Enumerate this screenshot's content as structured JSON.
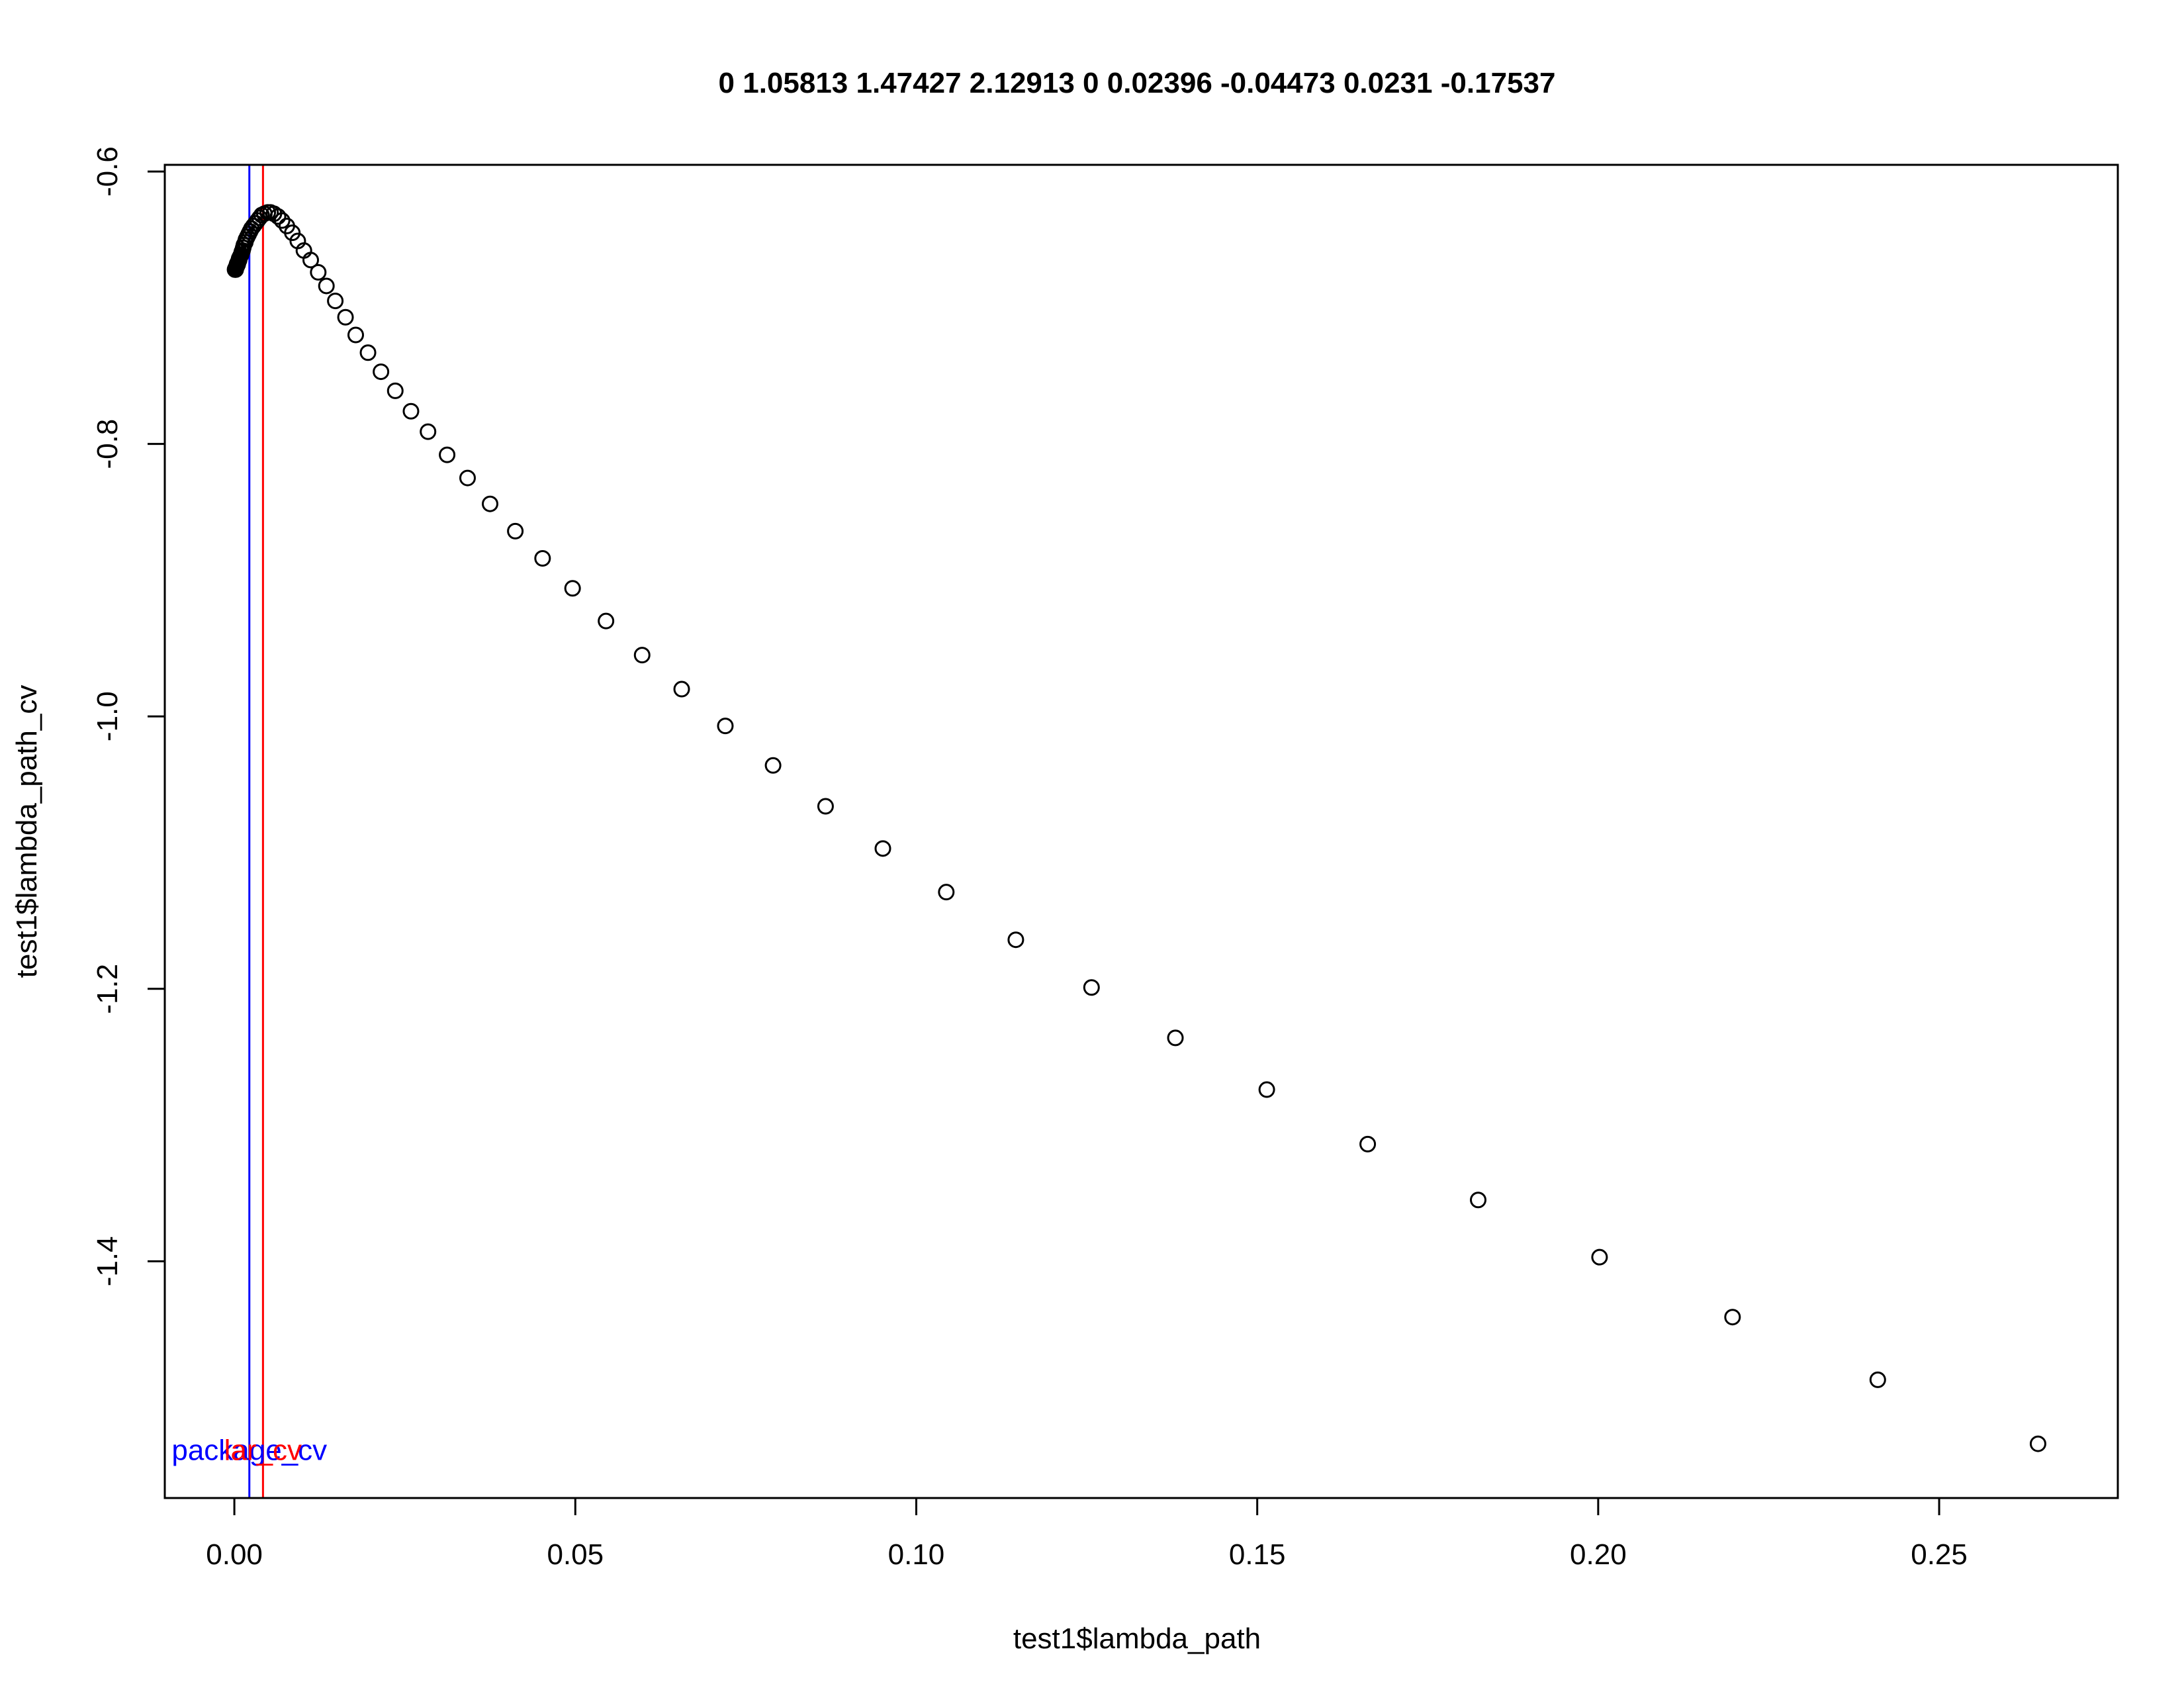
{
  "chart_data": {
    "type": "scatter",
    "title": "0 1.05813 1.47427 2.12913 0 0.02396 -0.04473 0.0231 -0.17537",
    "xlabel": "test1$lambda_path",
    "ylabel": "test1$lambda_path_cv",
    "xlim": [
      -0.0102,
      0.2762
    ],
    "ylim": [
      -1.5738,
      -0.5951
    ],
    "xticks": [
      0.0,
      0.05,
      0.1,
      0.15,
      0.2,
      0.25
    ],
    "xtick_labels": [
      "0.00",
      "0.05",
      "0.10",
      "0.15",
      "0.20",
      "0.25"
    ],
    "yticks": [
      -0.6,
      -0.8,
      -1.0,
      -1.2,
      -1.4
    ],
    "ytick_labels": [
      "-0.6",
      "-0.8",
      "-1.0",
      "-1.2",
      "-1.4"
    ],
    "grid": false,
    "series": [
      {
        "marker": "open-circle",
        "color": "#000000",
        "x": [
          0.2645,
          0.241,
          0.2197,
          0.2002,
          0.1824,
          0.1662,
          0.1514,
          0.138,
          0.1257,
          0.1146,
          0.1044,
          0.0951,
          0.0867,
          0.079,
          0.072,
          0.0656,
          0.0598,
          0.0545,
          0.0496,
          0.0452,
          0.0412,
          0.0375,
          0.0342,
          0.0312,
          0.0284,
          0.0259,
          0.0236,
          0.0215,
          0.0196,
          0.0178,
          0.0163,
          0.0148,
          0.0135,
          0.0123,
          0.0112,
          0.0102,
          0.0093,
          0.0085,
          0.0077,
          0.007,
          0.0064,
          0.0058,
          0.0053,
          0.0049,
          0.0044,
          0.004,
          0.0037,
          0.0034,
          0.0031,
          0.0028,
          0.0025,
          0.0023,
          0.0021,
          0.0019,
          0.0017,
          0.0016,
          0.0014,
          0.0013,
          0.0012,
          0.0011,
          0.001,
          0.0009,
          0.0008,
          0.0007,
          0.0007,
          0.0006,
          0.0005,
          0.0005,
          0.0004,
          0.0004,
          0.0004,
          0.0003,
          0.0003,
          0.0003,
          0.0002,
          0.0002,
          0.0002,
          0.0002,
          0.0002,
          0.0001
        ],
        "y": [
          -1.534,
          -1.487,
          -1.441,
          -1.397,
          -1.355,
          -1.314,
          -1.274,
          -1.236,
          -1.199,
          -1.164,
          -1.129,
          -1.097,
          -1.066,
          -1.036,
          -1.007,
          -0.98,
          -0.955,
          -0.93,
          -0.906,
          -0.884,
          -0.864,
          -0.844,
          -0.825,
          -0.808,
          -0.791,
          -0.776,
          -0.761,
          -0.747,
          -0.733,
          -0.72,
          -0.707,
          -0.695,
          -0.684,
          -0.674,
          -0.665,
          -0.658,
          -0.651,
          -0.645,
          -0.64,
          -0.636,
          -0.633,
          -0.631,
          -0.63,
          -0.63,
          -0.631,
          -0.632,
          -0.634,
          -0.636,
          -0.638,
          -0.64,
          -0.642,
          -0.644,
          -0.646,
          -0.648,
          -0.65,
          -0.652,
          -0.654,
          -0.656,
          -0.658,
          -0.659,
          -0.661,
          -0.662,
          -0.663,
          -0.664,
          -0.665,
          -0.666,
          -0.667,
          -0.668,
          -0.668,
          -0.669,
          -0.669,
          -0.67,
          -0.67,
          -0.67,
          -0.671,
          -0.671,
          -0.671,
          -0.671,
          -0.672,
          -0.672
        ]
      }
    ],
    "reference_lines": [
      {
        "orientation": "vertical",
        "x": 0.0022,
        "color": "#0000ff",
        "label": "package_cv",
        "label_y": -1.538
      },
      {
        "orientation": "vertical",
        "x": 0.0042,
        "color": "#ff0000",
        "label": "lar_cv",
        "label_y": -1.538
      }
    ]
  }
}
